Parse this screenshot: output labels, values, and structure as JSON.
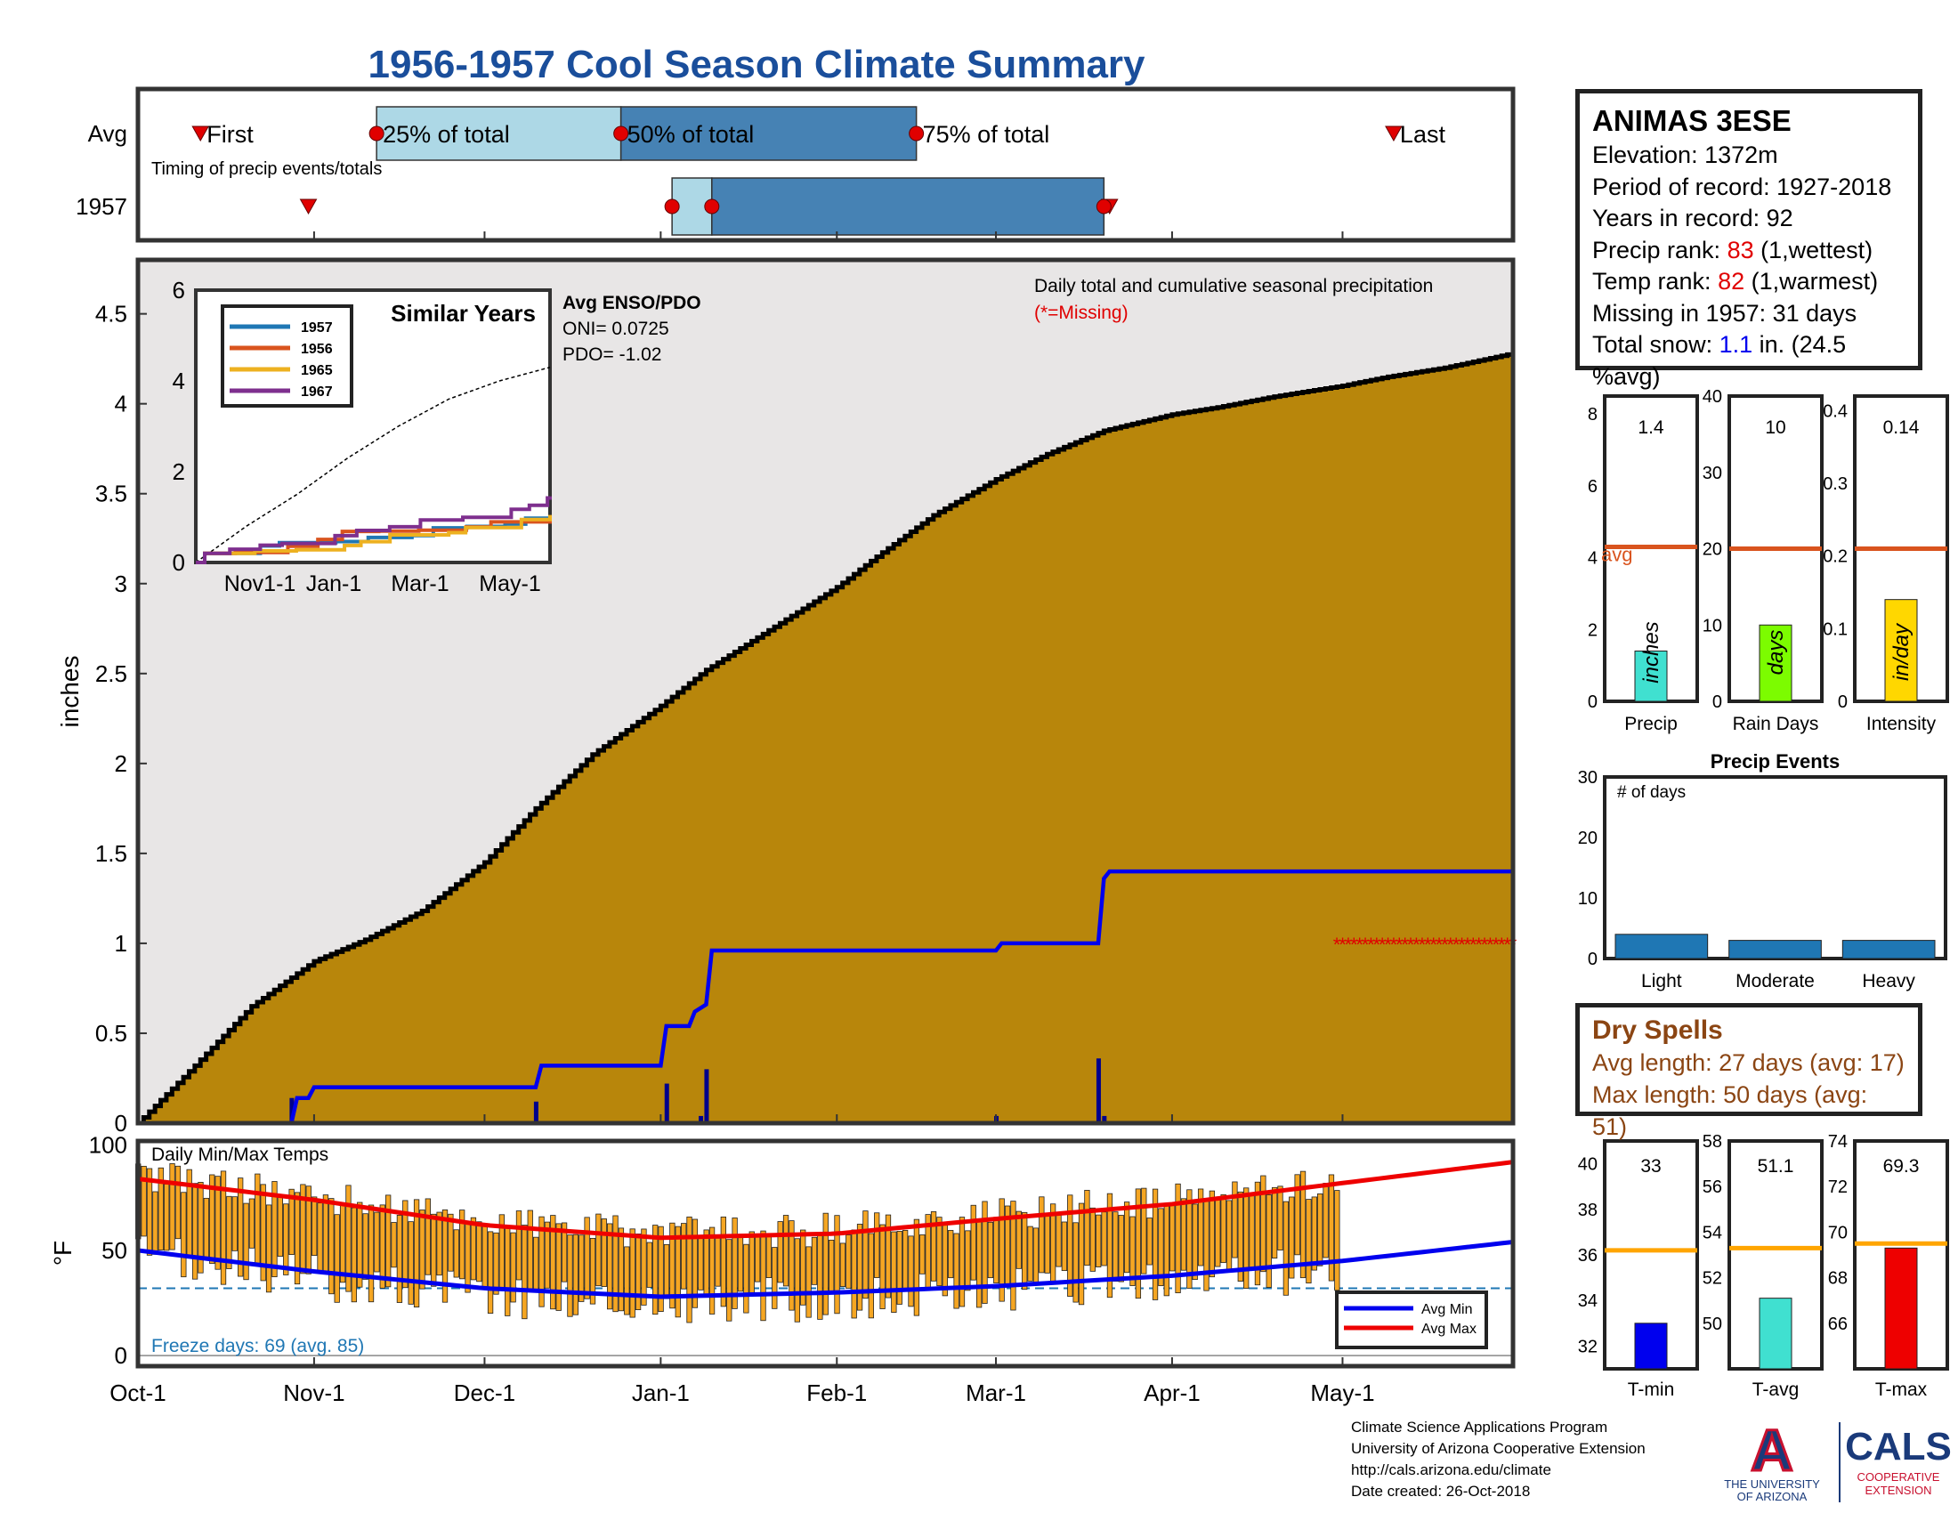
{
  "title": "1956-1957 Cool Season Climate Summary",
  "colors": {
    "title": "#1a4e9b",
    "cumulative_avg_fill": "#b8860b",
    "cumulative_1957_line": "#0000ee",
    "missing": "#e00000",
    "temp_bar": "#f5a623",
    "avg_min": "#0000ee",
    "avg_max": "#ee0000",
    "freeze_line": "#1f77b4",
    "avg_line": "#d9541e"
  },
  "station": {
    "name": "ANIMAS 3ESE",
    "elevation": "Elevation: 1372m",
    "period": "Period of record: 1927-2018",
    "years": "Years in record: 92",
    "precip_rank_label": "Precip rank: ",
    "precip_rank_value": "83",
    "precip_rank_note": " (1,wettest)",
    "temp_rank_label": "Temp rank: ",
    "temp_rank_value": "82",
    "temp_rank_note": " (1,warmest)",
    "missing": "Missing in 1957: 31 days",
    "snow_label": "Total snow: ",
    "snow_value": "1.1",
    "snow_note": " in. (24.5 %avg)"
  },
  "dry_spells": {
    "title": "Dry Spells",
    "avg": "Avg length: 27 days (avg: 17)",
    "max": "Max length: 50 days (avg: 51)"
  },
  "footer": {
    "line1": "Climate Science Applications Program",
    "line2": "University of Arizona Cooperative Extension",
    "line3": "http://cals.arizona.edu/climate",
    "line4": "Date created: 26-Oct-2018"
  },
  "logos": {
    "ua_letter": "A",
    "ua_line1": "THE UNIVERSITY",
    "ua_line2": "OF ARIZONA",
    "cals_name": "CALS",
    "cals_line1": "COOPERATIVE",
    "cals_line2": "EXTENSION"
  },
  "chart_data": [
    {
      "id": "timing",
      "type": "bar",
      "title": "",
      "annotation": "Timing of precip events/totals",
      "rows": [
        "Avg",
        "1957"
      ],
      "marker_labels": [
        "First",
        "25% of total",
        "50% of total",
        "75% of total",
        "Last"
      ],
      "avg": {
        "first": "Oct-12",
        "p25": "Nov-12",
        "p50": "Dec-25",
        "p75": "Feb-15",
        "last": "May-10"
      },
      "y1957": {
        "first": "Oct-31",
        "p25": "Jan-3",
        "p50": "Jan-10",
        "p75": "Mar-20",
        "last": "Mar-21"
      }
    },
    {
      "id": "cumulative",
      "type": "area",
      "title": "",
      "ylabel": "inches",
      "ylim": [
        0,
        4.8
      ],
      "yticks": [
        0,
        0.5,
        1,
        1.5,
        2,
        2.5,
        3,
        3.5,
        4,
        4.5
      ],
      "xticks": [
        "Oct-1",
        "Nov-1",
        "Dec-1",
        "Jan-1",
        "Feb-1",
        "Mar-1",
        "Apr-1",
        "May-1"
      ],
      "xtick_days": [
        0,
        31,
        61,
        92,
        123,
        151,
        182,
        212
      ],
      "annotation": "Daily total and cumulative seasonal precipitation",
      "missing_note": "(*=Missing)",
      "series": [
        {
          "name": "Average cumulative",
          "day": [
            0,
            10,
            20,
            31,
            40,
            50,
            61,
            70,
            80,
            92,
            100,
            110,
            123,
            130,
            140,
            151,
            160,
            170,
            182,
            190,
            200,
            212,
            220,
            230,
            242
          ],
          "values": [
            0,
            0.32,
            0.65,
            0.9,
            1.02,
            1.18,
            1.45,
            1.75,
            2.05,
            2.32,
            2.52,
            2.72,
            2.98,
            3.15,
            3.38,
            3.58,
            3.72,
            3.85,
            3.94,
            3.98,
            4.04,
            4.1,
            4.15,
            4.2,
            4.28
          ]
        },
        {
          "name": "1957 cumulative",
          "day": [
            0,
            27,
            28,
            30,
            31,
            70,
            71,
            92,
            93,
            97,
            98,
            100,
            101,
            151,
            152,
            169,
            170,
            171,
            242
          ],
          "values": [
            0,
            0,
            0.14,
            0.14,
            0.2,
            0.2,
            0.32,
            0.32,
            0.54,
            0.54,
            0.62,
            0.66,
            0.96,
            0.96,
            1.0,
            1.0,
            1.36,
            1.4,
            1.4
          ]
        },
        {
          "name": "1957 daily",
          "day": [
            27,
            70,
            93,
            99,
            100,
            151,
            169,
            170
          ],
          "values": [
            0.14,
            0.12,
            0.22,
            0.04,
            0.3,
            0.04,
            0.36,
            0.04
          ]
        }
      ],
      "missing_days_from": 211,
      "missing_days_to": 242,
      "missing_marker_y": 1.0
    },
    {
      "id": "similar_years",
      "type": "line",
      "title": "Similar Years",
      "ylim": [
        0,
        6
      ],
      "yticks": [
        0,
        2,
        4,
        6
      ],
      "xticks": [
        "Nov1-1",
        "Jan-1",
        "Mar-1",
        "May-1"
      ],
      "legend": [
        "1957",
        "1956",
        "1965",
        "1967"
      ],
      "legend_colors": [
        "#1f77b4",
        "#d9541e",
        "#edb120",
        "#7e2f8e"
      ],
      "enso_title": "Avg ENSO/PDO",
      "oni": "ONI= 0.0725",
      "pdo": "PDO= -1.02",
      "avg_cumulative": [
        0,
        0.8,
        1.5,
        2.3,
        3.0,
        3.6,
        4.0,
        4.3
      ]
    },
    {
      "id": "temps",
      "type": "bar",
      "title": "",
      "annotation": "Daily Min/Max Temps",
      "ylabel": "°F",
      "ylim": [
        -5,
        102
      ],
      "yticks": [
        0,
        50,
        100
      ],
      "freeze_label": "Freeze days: 69 (avg. 85)",
      "freeze_threshold": 32,
      "legend": [
        "Avg Min",
        "Avg Max"
      ],
      "avg_min": {
        "day": [
          0,
          31,
          61,
          92,
          123,
          151,
          182,
          212,
          242
        ],
        "values": [
          50,
          40,
          32,
          28,
          30,
          33,
          38,
          45,
          54
        ]
      },
      "avg_max": {
        "day": [
          0,
          31,
          61,
          92,
          123,
          151,
          182,
          212,
          242
        ],
        "values": [
          84,
          74,
          62,
          56,
          58,
          65,
          72,
          82,
          92
        ]
      },
      "daily_ranges_last_day": 211
    },
    {
      "id": "precip_summary",
      "type": "bar",
      "panels": [
        {
          "label": "Precip",
          "unit": "inches",
          "value": 1.4,
          "value_text": "1.4",
          "avg": 4.3,
          "ylim": [
            0,
            8.5
          ],
          "yticks": [
            0,
            2,
            4,
            6,
            8
          ],
          "color": "#40e0d0",
          "avg_text": "avg"
        },
        {
          "label": "Rain Days",
          "unit": "days",
          "value": 10,
          "value_text": "10",
          "avg": 20,
          "ylim": [
            0,
            40
          ],
          "yticks": [
            0,
            10,
            20,
            30,
            40
          ],
          "color": "#7cfc00"
        },
        {
          "label": "Intensity",
          "unit": "in/day",
          "value": 0.14,
          "value_text": "0.14",
          "avg": 0.21,
          "ylim": [
            0,
            0.42
          ],
          "yticks": [
            0,
            0.1,
            0.2,
            0.3,
            0.4
          ],
          "color": "#ffd700"
        }
      ]
    },
    {
      "id": "precip_events",
      "type": "bar",
      "title": "Precip Events",
      "ylabel": "# of days",
      "categories": [
        "Light",
        "Moderate",
        "Heavy"
      ],
      "values": [
        4,
        3,
        3
      ],
      "ylim": [
        0,
        30
      ],
      "yticks": [
        0,
        10,
        20,
        30
      ]
    },
    {
      "id": "temp_summary",
      "type": "bar",
      "panels": [
        {
          "label": "T-min",
          "value": 33,
          "value_text": "33",
          "avg": 36.2,
          "ylim": [
            31,
            41
          ],
          "yticks": [
            32,
            34,
            36,
            38,
            40
          ],
          "color": "#0000ee"
        },
        {
          "label": "T-avg",
          "value": 51.1,
          "value_text": "51.1",
          "avg": 53.3,
          "ylim": [
            48,
            58
          ],
          "yticks": [
            50,
            52,
            54,
            56,
            58
          ],
          "color": "#40e0d0"
        },
        {
          "label": "T-max",
          "value": 69.3,
          "value_text": "69.3",
          "avg": 69.5,
          "ylim": [
            64,
            74
          ],
          "yticks": [
            66,
            68,
            70,
            72,
            74
          ],
          "color": "#ee0000"
        }
      ]
    }
  ]
}
